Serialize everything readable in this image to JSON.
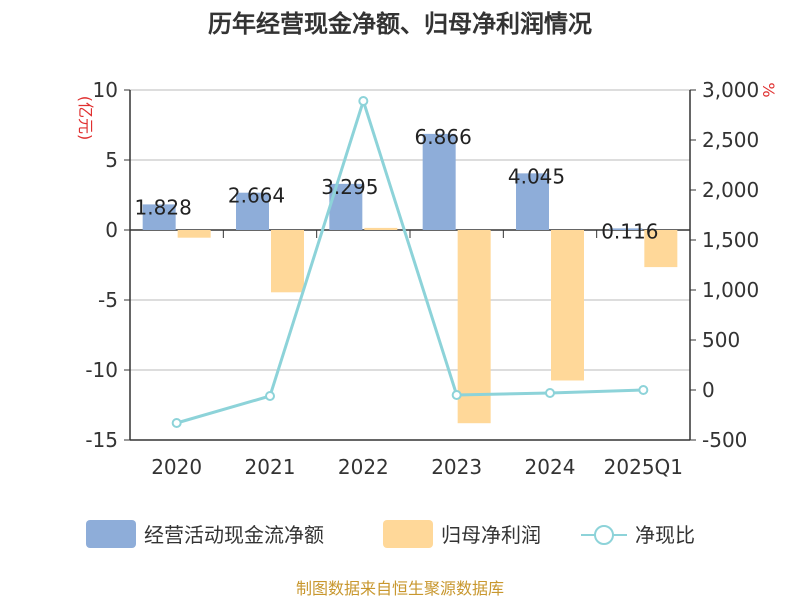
{
  "chart_data": {
    "type": "bar+line",
    "title": "历年经营现金净额、归母净利润情况",
    "categories": [
      "2020",
      "2021",
      "2022",
      "2023",
      "2024",
      "2025Q1"
    ],
    "left_axis": {
      "unit": "(亿元)",
      "ticks": [
        "10",
        "5",
        "0",
        "-5",
        "-10",
        "-15"
      ],
      "range": [
        -15,
        10
      ]
    },
    "right_axis": {
      "unit": "%",
      "ticks": [
        "3,000",
        "2,500",
        "2,000",
        "1,500",
        "1,000",
        "500",
        "0",
        "-500"
      ],
      "range": [
        -500,
        3000
      ]
    },
    "series": [
      {
        "name": "经营活动现金流净额",
        "type": "bar",
        "color": "#8eadd9",
        "values": [
          1.828,
          2.664,
          3.295,
          6.866,
          4.045,
          0.116
        ],
        "labels": [
          "1.828",
          "2.664",
          "3.295",
          "6.866",
          "4.045",
          "0.116"
        ]
      },
      {
        "name": "归母净利润",
        "type": "bar",
        "color": "#ffd899",
        "values": [
          -0.55,
          -4.45,
          0.15,
          -13.8,
          -10.75,
          -2.65
        ]
      },
      {
        "name": "净现比",
        "type": "line",
        "color": "#8dd3d9",
        "axis": "right",
        "values": [
          -330,
          -60,
          2890,
          -50,
          -30,
          0
        ]
      }
    ]
  },
  "source": "制图数据来自恒生聚源数据库"
}
